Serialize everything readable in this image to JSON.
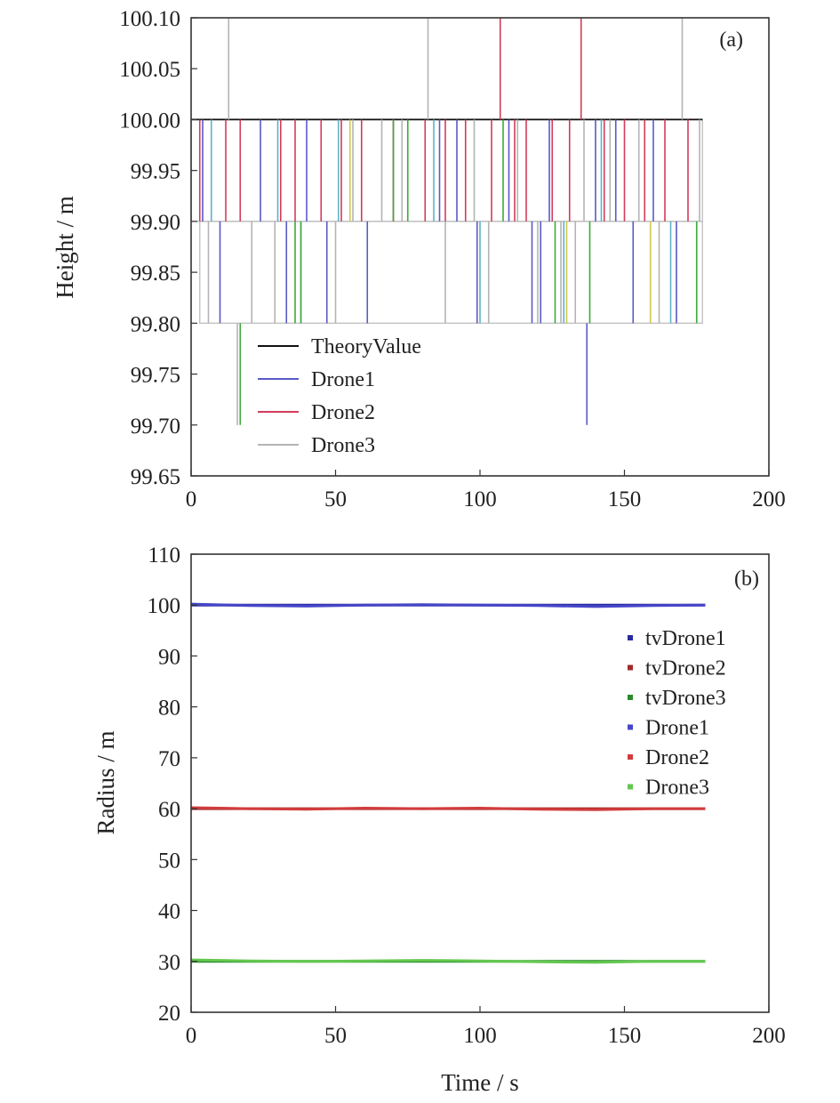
{
  "chart_data": [
    {
      "type": "line",
      "panel_label": "(a)",
      "xlabel": "",
      "ylabel": "Height / m",
      "xlim": [
        0,
        200
      ],
      "ylim": [
        99.65,
        100.1
      ],
      "x_ticks": [
        "0",
        "50",
        "100",
        "150",
        "200"
      ],
      "y_ticks": [
        "99.65",
        "99.70",
        "99.75",
        "99.80",
        "99.85",
        "99.90",
        "99.95",
        "100.00",
        "100.05",
        "100.10"
      ],
      "legend_position": "lower-left",
      "series": [
        {
          "name": "TheoryValue",
          "color": "#111111",
          "values": [
            [
              0,
              100.0
            ],
            [
              177,
              100.0
            ]
          ]
        },
        {
          "name": "Drone1",
          "color": "#5a5ac8",
          "segments": [
            [
              4,
              99.9,
              100.0
            ],
            [
              10,
              99.8,
              99.9
            ],
            [
              24,
              99.9,
              100.0
            ],
            [
              33,
              99.8,
              99.9
            ],
            [
              40,
              99.9,
              100.0
            ],
            [
              47,
              99.8,
              99.9
            ],
            [
              61,
              99.8,
              99.9
            ],
            [
              86,
              99.9,
              100.0
            ],
            [
              92,
              99.9,
              100.0
            ],
            [
              99,
              99.8,
              99.9
            ],
            [
              110,
              99.9,
              100.0
            ],
            [
              118,
              99.8,
              99.9
            ],
            [
              121,
              99.8,
              99.9
            ],
            [
              124,
              99.9,
              100.0
            ],
            [
              137,
              99.7,
              99.8
            ],
            [
              140,
              99.9,
              100.0
            ],
            [
              147,
              99.9,
              100.0
            ],
            [
              153,
              99.8,
              99.9
            ],
            [
              160,
              99.9,
              100.0
            ],
            [
              168,
              99.8,
              99.9
            ]
          ]
        },
        {
          "name": "Drone2",
          "color": "#d23c5a",
          "segments": [
            [
              3,
              99.9,
              100.0
            ],
            [
              12,
              99.9,
              100.0
            ],
            [
              17,
              99.9,
              100.0
            ],
            [
              31,
              99.9,
              100.0
            ],
            [
              36,
              99.9,
              100.0
            ],
            [
              45,
              99.9,
              100.0
            ],
            [
              52,
              99.9,
              100.0
            ],
            [
              59,
              99.9,
              100.0
            ],
            [
              70,
              99.9,
              100.0
            ],
            [
              81,
              99.9,
              100.0
            ],
            [
              88,
              99.9,
              100.0
            ],
            [
              95,
              99.9,
              100.0
            ],
            [
              104,
              99.9,
              100.0
            ],
            [
              107,
              100.0,
              100.1
            ],
            [
              112,
              99.9,
              100.0
            ],
            [
              116,
              99.9,
              100.0
            ],
            [
              125,
              99.9,
              100.0
            ],
            [
              131,
              99.9,
              100.0
            ],
            [
              135,
              100.0,
              100.1
            ],
            [
              143,
              99.9,
              100.0
            ],
            [
              150,
              99.9,
              100.0
            ],
            [
              157,
              99.9,
              100.0
            ],
            [
              164,
              99.9,
              100.0
            ],
            [
              172,
              99.9,
              100.0
            ]
          ]
        },
        {
          "name": "Drone3",
          "color": "#b4b4b4",
          "segments": [
            [
              6,
              99.8,
              99.9
            ],
            [
              13,
              100.0,
              100.1
            ],
            [
              16,
              99.7,
              99.8
            ],
            [
              21,
              99.8,
              99.9
            ],
            [
              29,
              99.8,
              99.9
            ],
            [
              38,
              99.8,
              99.9
            ],
            [
              50,
              99.8,
              99.9
            ],
            [
              56,
              99.9,
              100.0
            ],
            [
              66,
              99.9,
              100.0
            ],
            [
              73,
              99.9,
              100.0
            ],
            [
              82,
              100.0,
              100.1
            ],
            [
              88,
              99.8,
              99.9
            ],
            [
              98,
              99.9,
              100.0
            ],
            [
              103,
              99.8,
              99.9
            ],
            [
              113,
              99.9,
              100.0
            ],
            [
              120,
              99.8,
              99.9
            ],
            [
              128,
              99.8,
              99.9
            ],
            [
              133,
              99.8,
              99.9
            ],
            [
              136,
              99.9,
              100.0
            ],
            [
              145,
              99.9,
              100.0
            ],
            [
              155,
              99.9,
              100.0
            ],
            [
              162,
              99.8,
              99.9
            ],
            [
              170,
              100.0,
              100.1
            ],
            [
              176,
              99.9,
              100.0
            ]
          ]
        },
        {
          "name": "",
          "color": "#3caa3c",
          "segments": [
            [
              17,
              99.7,
              99.8
            ],
            [
              36,
              99.8,
              99.9
            ],
            [
              38,
              99.8,
              99.9
            ],
            [
              70,
              99.9,
              100.0
            ],
            [
              75,
              99.9,
              100.0
            ],
            [
              108,
              99.9,
              100.0
            ],
            [
              126,
              99.8,
              99.9
            ],
            [
              138,
              99.8,
              99.9
            ],
            [
              175,
              99.8,
              99.9
            ]
          ]
        },
        {
          "name": "",
          "color": "#5ab4c8",
          "segments": [
            [
              7,
              99.9,
              100.0
            ],
            [
              30,
              99.9,
              100.0
            ],
            [
              51,
              99.9,
              100.0
            ],
            [
              84,
              99.9,
              100.0
            ],
            [
              100,
              99.8,
              99.9
            ],
            [
              129,
              99.8,
              99.9
            ],
            [
              142,
              99.9,
              100.0
            ],
            [
              166,
              99.8,
              99.9
            ]
          ]
        },
        {
          "name": "",
          "color": "#d2c850",
          "segments": [
            [
              55,
              99.9,
              100.0
            ],
            [
              130,
              99.8,
              99.9
            ],
            [
              159,
              99.8,
              99.9
            ]
          ]
        }
      ],
      "bands": [
        [
          0,
          177,
          99.9,
          100.0
        ],
        [
          3,
          177,
          99.8,
          99.9
        ]
      ]
    },
    {
      "type": "line",
      "panel_label": "(b)",
      "xlabel": "Time / s",
      "ylabel": "Radius / m",
      "xlim": [
        0,
        200
      ],
      "ylim": [
        20,
        110
      ],
      "x_ticks": [
        "0",
        "50",
        "100",
        "150",
        "200"
      ],
      "y_ticks": [
        "20",
        "30",
        "40",
        "50",
        "60",
        "70",
        "80",
        "90",
        "100",
        "110"
      ],
      "legend_position": "top-right",
      "series": [
        {
          "name": "tvDrone1",
          "color": "#2a2aa0",
          "values": [
            [
              0,
              100
            ],
            [
              178,
              100
            ]
          ]
        },
        {
          "name": "tvDrone2",
          "color": "#a02a2a",
          "values": [
            [
              0,
              60
            ],
            [
              178,
              60
            ]
          ]
        },
        {
          "name": "tvDrone3",
          "color": "#2a8a2a",
          "values": [
            [
              0,
              30
            ],
            [
              178,
              30
            ]
          ]
        },
        {
          "name": "Drone1",
          "color": "#4646c8",
          "values": [
            [
              0,
              100.2
            ],
            [
              20,
              99.9
            ],
            [
              40,
              99.8
            ],
            [
              60,
              100.0
            ],
            [
              80,
              100.1
            ],
            [
              100,
              100.0
            ],
            [
              120,
              99.9
            ],
            [
              140,
              99.7
            ],
            [
              160,
              99.9
            ],
            [
              178,
              100.0
            ]
          ]
        },
        {
          "name": "Drone2",
          "color": "#d23c3c",
          "values": [
            [
              0,
              60.2
            ],
            [
              20,
              60.0
            ],
            [
              40,
              59.9
            ],
            [
              60,
              60.1
            ],
            [
              80,
              60.0
            ],
            [
              100,
              60.1
            ],
            [
              120,
              59.9
            ],
            [
              140,
              59.8
            ],
            [
              160,
              60.0
            ],
            [
              178,
              60.0
            ]
          ]
        },
        {
          "name": "Drone3",
          "color": "#64c850",
          "values": [
            [
              0,
              30.3
            ],
            [
              20,
              30.1
            ],
            [
              40,
              30.0
            ],
            [
              60,
              30.1
            ],
            [
              80,
              30.2
            ],
            [
              100,
              30.1
            ],
            [
              120,
              29.9
            ],
            [
              140,
              29.8
            ],
            [
              160,
              30.0
            ],
            [
              178,
              30.0
            ]
          ]
        }
      ]
    }
  ]
}
